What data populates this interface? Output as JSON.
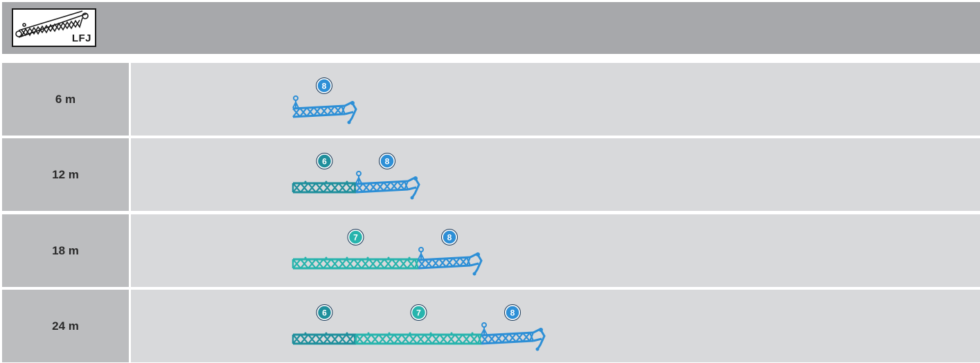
{
  "logo": {
    "label": "LFJ"
  },
  "colors": {
    "section_6": "#1f8f9c",
    "section_7": "#27b4ad",
    "section_8": "#2d8fd6"
  },
  "rows": [
    {
      "length": "6 m",
      "sections": [
        "8"
      ]
    },
    {
      "length": "12 m",
      "sections": [
        "6",
        "8"
      ]
    },
    {
      "length": "18 m",
      "sections": [
        "7",
        "8"
      ]
    },
    {
      "length": "24 m",
      "sections": [
        "6",
        "7",
        "8"
      ]
    }
  ]
}
